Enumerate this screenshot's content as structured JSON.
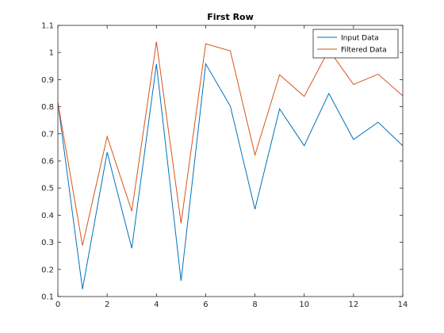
{
  "chart_data": {
    "type": "line",
    "title": "First Row",
    "xlabel": "",
    "ylabel": "",
    "xlim": [
      0,
      14
    ],
    "ylim": [
      0.1,
      1.1
    ],
    "x_ticks": [
      0,
      2,
      4,
      6,
      8,
      10,
      12,
      14
    ],
    "y_ticks": [
      0.1,
      0.2,
      0.3,
      0.4,
      0.5,
      0.6,
      0.7,
      0.8,
      0.9,
      1,
      1.1
    ],
    "grid": false,
    "legend_position": "top-right",
    "x": [
      0,
      1,
      2,
      3,
      4,
      5,
      6,
      7,
      8,
      9,
      10,
      11,
      12,
      13,
      14
    ],
    "series": [
      {
        "name": "Input Data",
        "color": "#0072bd",
        "values": [
          0.815,
          0.127,
          0.632,
          0.278,
          0.958,
          0.158,
          0.958,
          0.802,
          0.422,
          0.792,
          0.656,
          0.849,
          0.679,
          0.743,
          0.656
        ]
      },
      {
        "name": "Filtered Data",
        "color": "#d95319",
        "values": [
          0.815,
          0.288,
          0.69,
          0.415,
          1.04,
          0.37,
          1.032,
          1.006,
          0.622,
          0.918,
          0.838,
          1.01,
          0.882,
          0.92,
          0.84
        ]
      }
    ]
  }
}
